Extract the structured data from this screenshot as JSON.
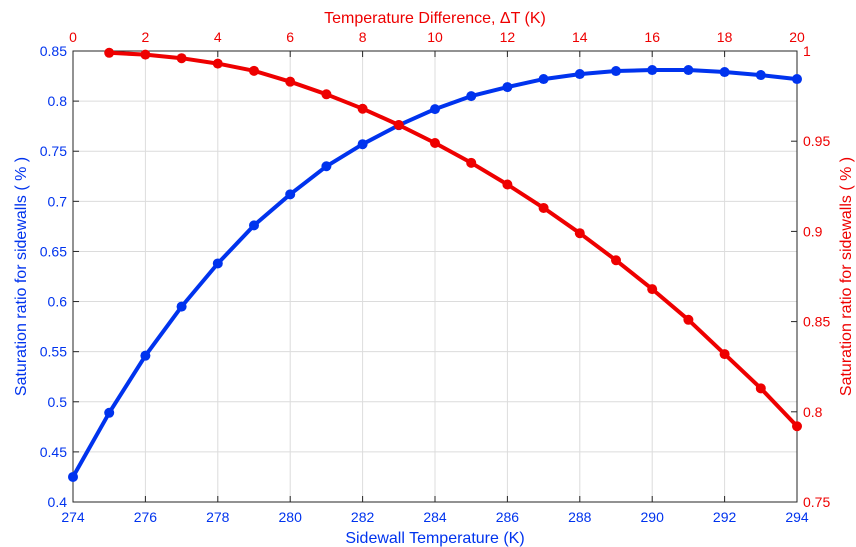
{
  "chart_data": {
    "type": "line",
    "grid": true,
    "axes": {
      "bottom": {
        "label": "Sidewall Temperature (K)",
        "range": [
          274,
          294
        ],
        "ticks": [
          "274",
          "276",
          "278",
          "280",
          "282",
          "284",
          "286",
          "288",
          "290",
          "292",
          "294"
        ],
        "color": "#0033ee"
      },
      "top": {
        "label_main": "Temperature Difference, ",
        "label_delta": "Δ",
        "label_tail": "T (K)",
        "range": [
          0,
          20
        ],
        "ticks": [
          "0",
          "2",
          "4",
          "6",
          "8",
          "10",
          "12",
          "14",
          "16",
          "18",
          "20"
        ],
        "color": "#ee0000"
      },
      "left": {
        "label": "Saturation ratio for sidewalls ( % )",
        "range": [
          0.4,
          0.85
        ],
        "ticks": [
          "0.4",
          "0.45",
          "0.5",
          "0.55",
          "0.6",
          "0.65",
          "0.7",
          "0.75",
          "0.8",
          "0.85"
        ],
        "color": "#0033ee"
      },
      "right": {
        "label": "Saturation ratio for sidewalls ( % )",
        "range": [
          0.75,
          1.0
        ],
        "ticks": [
          "0.75",
          "0.8",
          "0.85",
          "0.9",
          "0.95",
          "1"
        ],
        "color": "#ee0000"
      }
    },
    "series": [
      {
        "axis_x": "bottom",
        "axis_y": "left",
        "color": "#0033ee",
        "x": [
          274,
          275,
          276,
          277,
          278,
          279,
          280,
          281,
          282,
          283,
          284,
          285,
          286,
          287,
          288,
          289,
          290,
          291,
          292,
          293,
          294
        ],
        "y": [
          0.425,
          0.489,
          0.546,
          0.595,
          0.638,
          0.676,
          0.707,
          0.735,
          0.757,
          0.776,
          0.792,
          0.805,
          0.814,
          0.822,
          0.827,
          0.83,
          0.831,
          0.831,
          0.829,
          0.826,
          0.822
        ]
      },
      {
        "axis_x": "top",
        "axis_y": "right",
        "color": "#ee0000",
        "x": [
          1,
          2,
          3,
          4,
          5,
          6,
          7,
          8,
          9,
          10,
          11,
          12,
          13,
          14,
          15,
          16,
          17,
          18,
          19,
          20
        ],
        "y": [
          0.999,
          0.998,
          0.996,
          0.993,
          0.989,
          0.983,
          0.976,
          0.968,
          0.959,
          0.949,
          0.938,
          0.926,
          0.913,
          0.899,
          0.884,
          0.868,
          0.851,
          0.832,
          0.813,
          0.792
        ]
      }
    ]
  }
}
